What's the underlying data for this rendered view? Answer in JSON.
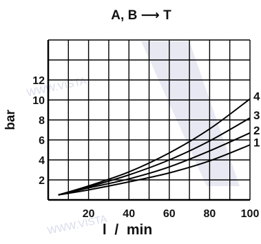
{
  "chart_data": {
    "type": "line",
    "title": "A, B ⟶ T",
    "xlabel": "l  /  min",
    "ylabel": "bar",
    "xlim": [
      0,
      100
    ],
    "ylim": [
      0,
      16
    ],
    "xticks": [
      20,
      40,
      60,
      80,
      100
    ],
    "yticks": [
      2,
      4,
      6,
      8,
      10,
      12
    ],
    "grid": true,
    "series": [
      {
        "name": "1",
        "x": [
          5,
          20,
          40,
          60,
          80,
          100
        ],
        "y": [
          0.5,
          1.0,
          1.8,
          2.7,
          3.9,
          5.5
        ]
      },
      {
        "name": "2",
        "x": [
          5,
          20,
          40,
          60,
          80,
          100
        ],
        "y": [
          0.5,
          1.2,
          2.1,
          3.3,
          4.9,
          6.7
        ]
      },
      {
        "name": "3",
        "x": [
          5,
          20,
          40,
          60,
          80,
          100
        ],
        "y": [
          0.5,
          1.3,
          2.5,
          4.0,
          5.9,
          8.2
        ]
      },
      {
        "name": "4",
        "x": [
          5,
          20,
          40,
          60,
          80,
          100
        ],
        "y": [
          0.5,
          1.4,
          2.8,
          4.7,
          7.1,
          10.1
        ]
      }
    ]
  },
  "colors": {
    "line": "#000000",
    "grid": "#000000",
    "watermark": "#c9cde3"
  },
  "watermark_text": "WWW.VISTA"
}
